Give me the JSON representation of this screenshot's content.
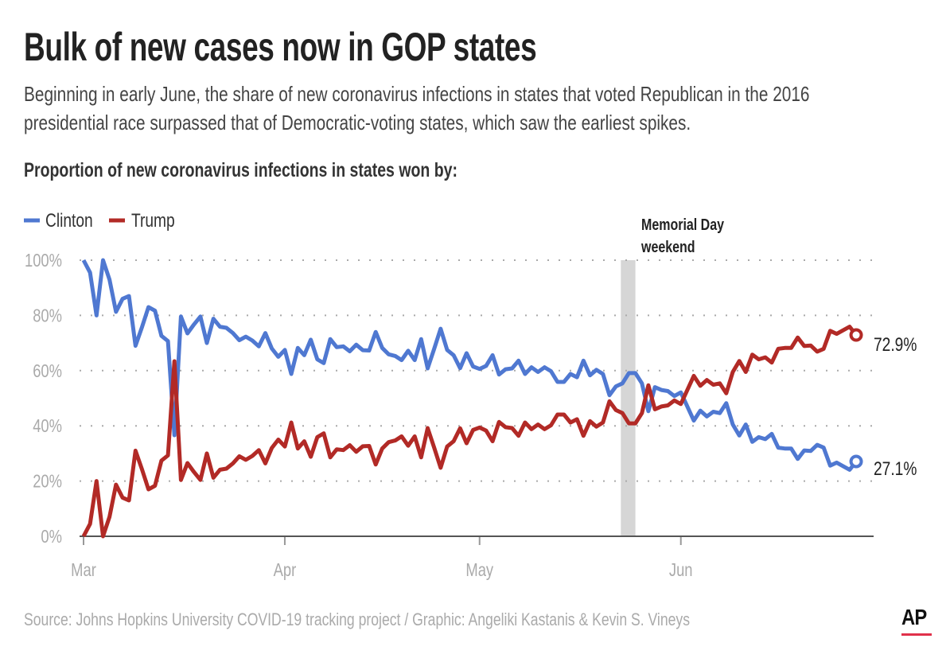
{
  "header": {
    "title": "Bulk of new cases now in GOP states",
    "subtitle": "Beginning in early June, the share of new coronavirus infections in states that voted Republican in the 2016 presidential race surpassed that of Democratic-voting states, which saw the earliest spikes.",
    "chart_heading": "Proportion of new coronavirus infections in states won by:"
  },
  "footer": {
    "source": "Source: Johns Hopkins University COVID-19 tracking project / Graphic: Angeliki Kastanis & Kevin S. Vineys",
    "logo": "AP"
  },
  "chart_data": {
    "type": "line",
    "legend": {
      "placement": "top-left",
      "entries": [
        "Clinton",
        "Trump"
      ]
    },
    "ylim": [
      0,
      100
    ],
    "y_ticks": [
      "0%",
      "20%",
      "40%",
      "60%",
      "80%",
      "100%"
    ],
    "x_ticks": [
      "Mar",
      "Apr",
      "May",
      "Jun"
    ],
    "grid": "horizontal-dotted",
    "annotation": {
      "label_line1": "Memorial Day",
      "label_line2": "weekend",
      "from": "May 23",
      "to": "May 25"
    },
    "end_labels": {
      "Clinton": "27.1%",
      "Trump": "72.9%"
    },
    "x": [
      "Mar 1",
      "Mar 2",
      "Mar 3",
      "Mar 4",
      "Mar 5",
      "Mar 6",
      "Mar 7",
      "Mar 8",
      "Mar 9",
      "Mar 10",
      "Mar 11",
      "Mar 12",
      "Mar 13",
      "Mar 14",
      "Mar 15",
      "Mar 16",
      "Mar 17",
      "Mar 18",
      "Mar 19",
      "Mar 20",
      "Mar 21",
      "Mar 22",
      "Mar 23",
      "Mar 24",
      "Mar 25",
      "Mar 26",
      "Mar 27",
      "Mar 28",
      "Mar 29",
      "Mar 30",
      "Mar 31",
      "Apr 1",
      "Apr 2",
      "Apr 3",
      "Apr 4",
      "Apr 5",
      "Apr 6",
      "Apr 7",
      "Apr 8",
      "Apr 9",
      "Apr 10",
      "Apr 11",
      "Apr 12",
      "Apr 13",
      "Apr 14",
      "Apr 15",
      "Apr 16",
      "Apr 17",
      "Apr 18",
      "Apr 19",
      "Apr 20",
      "Apr 21",
      "Apr 22",
      "Apr 23",
      "Apr 24",
      "Apr 25",
      "Apr 26",
      "Apr 27",
      "Apr 28",
      "Apr 29",
      "Apr 30",
      "May 1",
      "May 2",
      "May 3",
      "May 4",
      "May 5",
      "May 6",
      "May 7",
      "May 8",
      "May 9",
      "May 10",
      "May 11",
      "May 12",
      "May 13",
      "May 14",
      "May 15",
      "May 16",
      "May 17",
      "May 18",
      "May 19",
      "May 20",
      "May 21",
      "May 22",
      "May 23",
      "May 24",
      "May 25",
      "May 26",
      "May 27",
      "May 28",
      "May 29",
      "May 30",
      "May 31",
      "Jun 1",
      "Jun 2",
      "Jun 3",
      "Jun 4",
      "Jun 5",
      "Jun 6",
      "Jun 7",
      "Jun 8",
      "Jun 9",
      "Jun 10",
      "Jun 11",
      "Jun 12",
      "Jun 13",
      "Jun 14",
      "Jun 15",
      "Jun 16",
      "Jun 17",
      "Jun 18",
      "Jun 19",
      "Jun 20",
      "Jun 21",
      "Jun 22",
      "Jun 23",
      "Jun 24",
      "Jun 25",
      "Jun 26",
      "Jun 27",
      "Jun 28"
    ],
    "series": [
      {
        "name": "Clinton",
        "color": "#4f78d1",
        "values": [
          100,
          95.5,
          80,
          100,
          93,
          81.3,
          86,
          87,
          69,
          75.7,
          83,
          81.7,
          72.6,
          70.7,
          36.6,
          79.6,
          73.5,
          76.7,
          79.6,
          70,
          78.8,
          75.9,
          75.5,
          73.6,
          71,
          72.3,
          70.9,
          68.8,
          73.6,
          68,
          65,
          67.5,
          58.8,
          68.2,
          65.6,
          71.2,
          64.1,
          62.7,
          71.4,
          68.5,
          68.8,
          67,
          69.4,
          67.4,
          67.3,
          74,
          68.2,
          65.9,
          65.3,
          63.8,
          67.2,
          63.8,
          71.4,
          60.8,
          67.8,
          75.2,
          67.5,
          65.6,
          60.9,
          66.3,
          61.5,
          60.6,
          61.7,
          65.6,
          58.6,
          60.5,
          60.8,
          63.6,
          58.8,
          61.2,
          59.5,
          61.2,
          59.8,
          55.9,
          55.9,
          58.8,
          57.6,
          63.6,
          58.3,
          60.3,
          58.8,
          51.1,
          54.3,
          55.4,
          59.1,
          59.1,
          55.4,
          45.3,
          54,
          53,
          52.6,
          50.8,
          52.1,
          47,
          41.9,
          45.5,
          43.4,
          45.1,
          44.6,
          48.2,
          40.5,
          36.5,
          40.5,
          34.2,
          35.9,
          35.2,
          37.1,
          32.1,
          31.8,
          31.8,
          28,
          31.1,
          30.9,
          33.1,
          32.1,
          25.6,
          26.7,
          25.4,
          24.1,
          27.1
        ]
      },
      {
        "name": "Trump",
        "color": "#b22a26",
        "values": [
          0,
          4.5,
          20,
          0,
          7,
          18.7,
          14,
          13,
          31,
          24.3,
          17,
          18.3,
          27.4,
          29.3,
          63.4,
          20.4,
          26.5,
          23.3,
          20.4,
          30,
          21.2,
          24.1,
          24.5,
          26.4,
          29,
          27.7,
          29.1,
          31.2,
          26.4,
          32,
          35,
          32.5,
          41.2,
          31.8,
          34.4,
          28.8,
          35.9,
          37.3,
          28.6,
          31.5,
          31.2,
          33,
          30.6,
          32.6,
          32.7,
          26,
          31.8,
          34.1,
          34.7,
          36.2,
          32.8,
          36.2,
          28.6,
          39.2,
          32.2,
          24.8,
          32.5,
          34.4,
          39.1,
          33.7,
          38.5,
          39.4,
          38.3,
          34.4,
          41.4,
          39.5,
          39.2,
          36.4,
          41.2,
          38.8,
          40.5,
          38.8,
          40.2,
          44.1,
          44.1,
          41.2,
          42.4,
          36.4,
          41.7,
          39.7,
          41.2,
          48.9,
          45.7,
          44.6,
          40.9,
          40.9,
          44.6,
          54.7,
          46,
          47,
          47.4,
          49.2,
          47.9,
          53,
          58.1,
          54.5,
          56.6,
          54.9,
          55.4,
          51.8,
          59.5,
          63.5,
          59.5,
          65.8,
          64.1,
          64.8,
          62.9,
          67.9,
          68.2,
          68.2,
          72,
          68.9,
          69.1,
          66.9,
          67.9,
          74.4,
          73.3,
          74.6,
          75.9,
          72.9
        ]
      }
    ]
  }
}
